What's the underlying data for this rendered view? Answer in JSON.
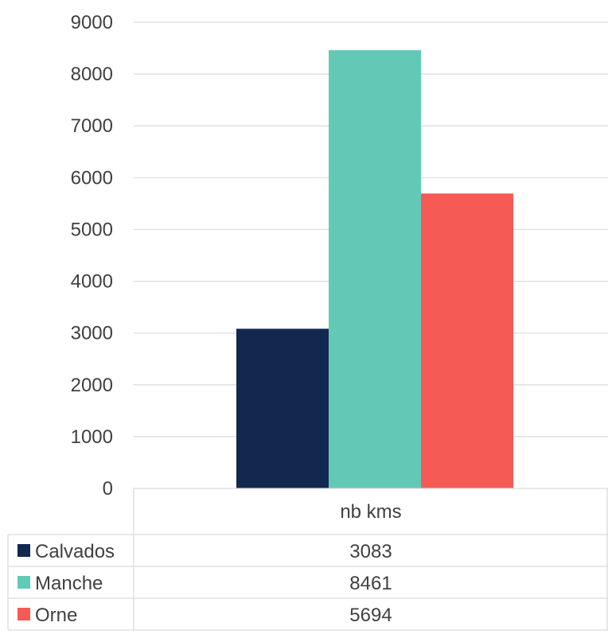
{
  "chart_data": {
    "type": "bar",
    "categories": [
      "nb kms"
    ],
    "series": [
      {
        "name": "Calvados",
        "values": [
          3083
        ],
        "color": "#12284f"
      },
      {
        "name": "Manche",
        "values": [
          8461
        ],
        "color": "#63c9b7"
      },
      {
        "name": "Orne",
        "values": [
          5694
        ],
        "color": "#f55a54"
      }
    ],
    "ylim": [
      0,
      9000
    ],
    "yticks": [
      0,
      1000,
      2000,
      3000,
      4000,
      5000,
      6000,
      7000,
      8000,
      9000
    ],
    "grid": true,
    "legend": "data-table-below",
    "data_table": {
      "header": "nb kms",
      "rows": [
        {
          "label": "Calvados",
          "value": "3083"
        },
        {
          "label": "Manche",
          "value": "8461"
        },
        {
          "label": "Orne",
          "value": "5694"
        }
      ]
    }
  }
}
